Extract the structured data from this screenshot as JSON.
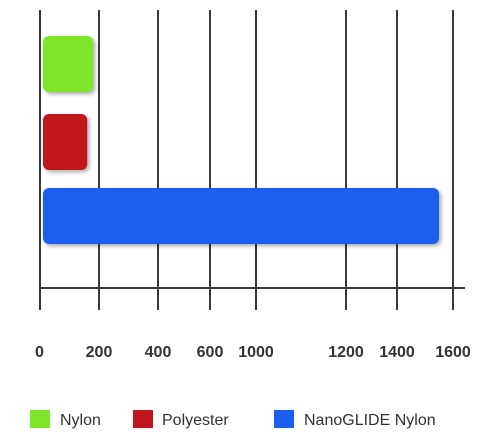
{
  "chart_data": {
    "type": "bar",
    "orientation": "horizontal",
    "categories": [
      "Nylon",
      "Polyester",
      "NanoGLIDE Nylon"
    ],
    "values": [
      180,
      160,
      1550
    ],
    "colors": [
      "#7ee62a",
      "#c0141e",
      "#1a5ef0"
    ],
    "xlim": [
      0,
      1600
    ],
    "xticks": [
      0,
      200,
      400,
      600,
      1000,
      1200,
      1400,
      1600
    ],
    "title": "",
    "xlabel": "",
    "ylabel": "",
    "grid": "vertical",
    "legend": {
      "position": "bottom",
      "entries": [
        "Nylon",
        "Polyester",
        "NanoGLIDE Nylon"
      ]
    }
  }
}
